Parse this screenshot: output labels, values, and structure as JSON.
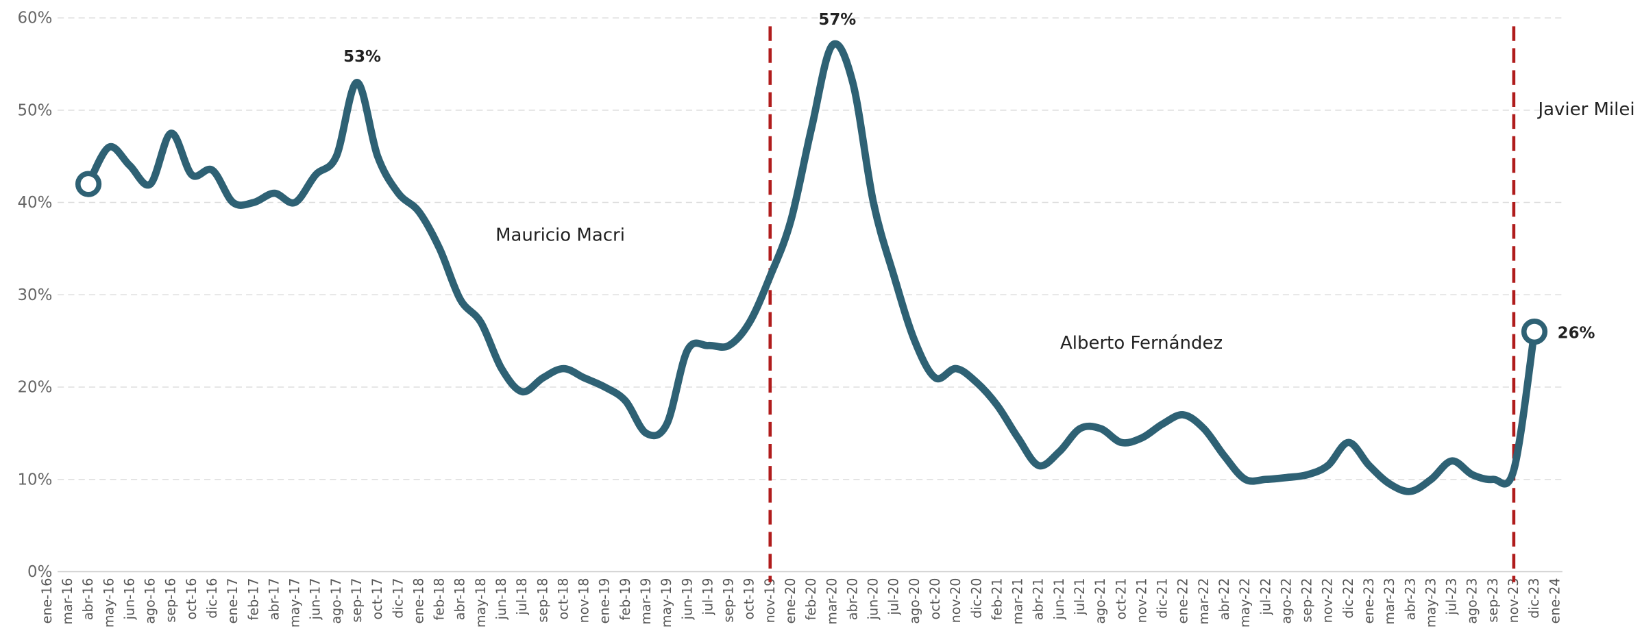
{
  "chart_data": {
    "type": "line",
    "categories": [
      "ene-16",
      "mar-16",
      "abr-16",
      "may-16",
      "jun-16",
      "ago-16",
      "sep-16",
      "oct-16",
      "dic-16",
      "ene-17",
      "feb-17",
      "abr-17",
      "may-17",
      "jun-17",
      "ago-17",
      "sep-17",
      "oct-17",
      "dic-17",
      "ene-18",
      "feb-18",
      "abr-18",
      "may-18",
      "jun-18",
      "jul-18",
      "sep-18",
      "oct-18",
      "nov-18",
      "ene-19",
      "feb-19",
      "mar-19",
      "may-19",
      "jun-19",
      "jul-19",
      "sep-19",
      "oct-19",
      "nov-19",
      "ene-20",
      "feb-20",
      "mar-20",
      "abr-20",
      "jun-20",
      "jul-20",
      "ago-20",
      "oct-20",
      "nov-20",
      "dic-20",
      "feb-21",
      "mar-21",
      "abr-21",
      "jun-21",
      "jul-21",
      "ago-21",
      "oct-21",
      "nov-21",
      "dic-21",
      "ene-22",
      "mar-22",
      "abr-22",
      "may-22",
      "jul-22",
      "ago-22",
      "sep-22",
      "nov-22",
      "dic-22",
      "ene-23",
      "mar-23",
      "abr-23",
      "may-23",
      "jul-23",
      "ago-23",
      "sep-23",
      "nov-23",
      "dic-23",
      "ene-24"
    ],
    "series": [
      {
        "color": "#2e6174",
        "values": [
          null,
          null,
          42,
          46,
          44,
          42,
          47.5,
          43,
          43.5,
          40,
          40,
          41,
          40,
          43,
          45,
          53,
          45,
          41,
          39,
          35,
          29.5,
          27,
          22,
          19.5,
          21,
          22,
          21,
          20,
          18.5,
          15,
          16,
          24,
          24.5,
          24.5,
          27,
          32,
          38,
          48,
          57,
          53,
          40,
          32,
          25,
          21,
          22,
          20.5,
          18,
          14.5,
          11.5,
          13,
          15.5,
          15.5,
          14,
          14.5,
          16,
          17,
          15.5,
          12.5,
          10,
          10,
          10.2,
          10.5,
          11.5,
          14,
          11.5,
          9.5,
          8.7,
          10,
          12,
          10.5,
          10,
          11,
          26,
          null
        ],
        "value_labels": [
          null,
          null,
          null,
          null,
          null,
          null,
          null,
          null,
          null,
          null,
          null,
          null,
          null,
          null,
          null,
          "53%",
          null,
          null,
          null,
          null,
          null,
          null,
          null,
          null,
          null,
          null,
          null,
          null,
          null,
          null,
          null,
          null,
          null,
          null,
          null,
          null,
          null,
          null,
          "57%",
          null,
          null,
          null,
          null,
          null,
          null,
          null,
          null,
          null,
          null,
          null,
          null,
          null,
          null,
          null,
          null,
          null,
          null,
          null,
          null,
          null,
          null,
          null,
          null,
          null,
          null,
          null,
          null,
          null,
          null,
          null,
          null,
          null,
          "26%",
          null
        ]
      }
    ],
    "ylim": [
      0,
      60
    ],
    "yticks": [
      {
        "value": 0,
        "label": "0%"
      },
      {
        "value": 10,
        "label": "10%"
      },
      {
        "value": 20,
        "label": "20%"
      },
      {
        "value": 30,
        "label": "30%"
      },
      {
        "value": 40,
        "label": "40%"
      },
      {
        "value": 50,
        "label": "50%"
      },
      {
        "value": 60,
        "label": "60%"
      }
    ],
    "grid": true,
    "divider_color": "#b01c1c",
    "dividers": [
      "nov-19",
      "nov-23"
    ],
    "periods": [
      "Mauricio Macri",
      "Alberto Fernández",
      "Javier Milei"
    ]
  }
}
